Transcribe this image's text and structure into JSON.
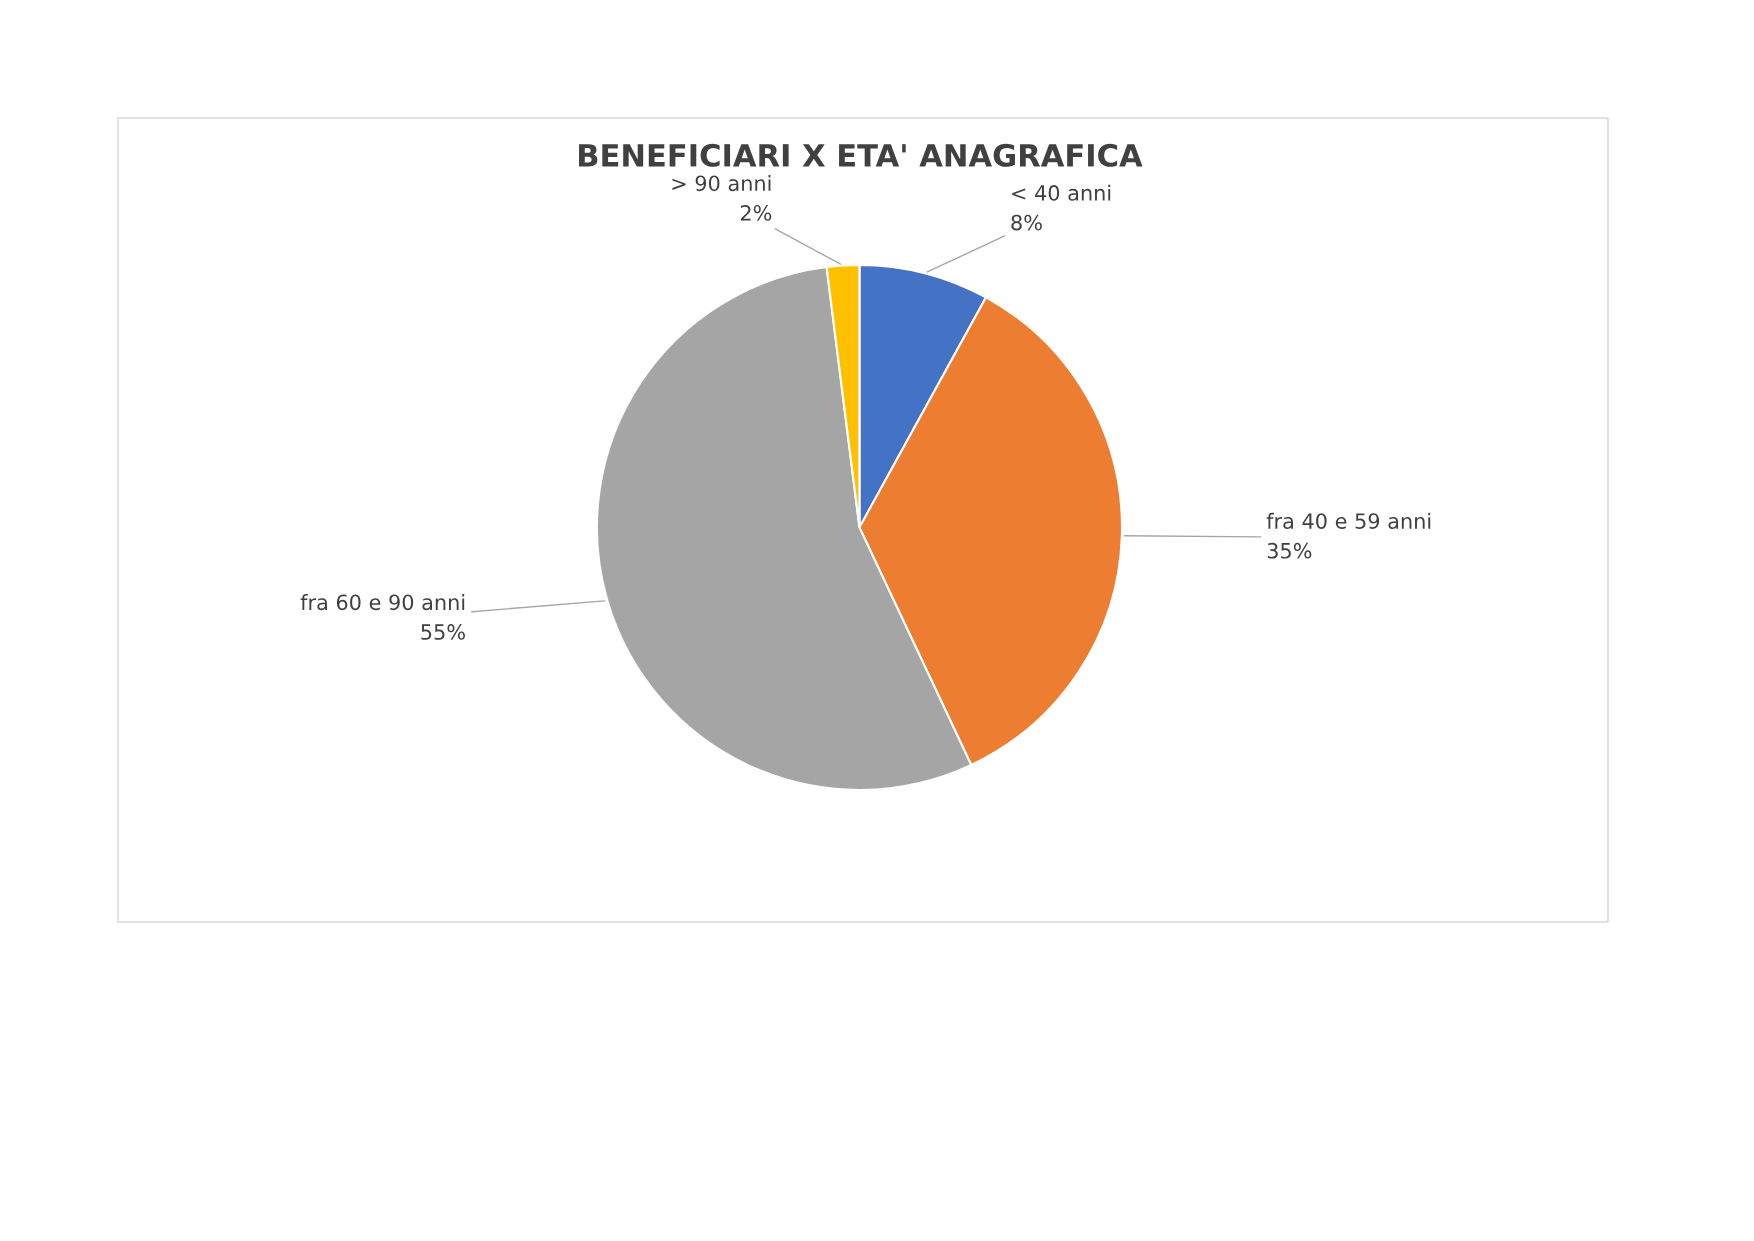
{
  "chart_data": {
    "type": "pie",
    "title": "BENEFICIARI X ETA' ANAGRAFICA",
    "categories": [
      "< 40 anni",
      "fra 40 e 59 anni",
      "fra 60 e 90 anni",
      "> 90 anni"
    ],
    "values": [
      8,
      35,
      55,
      2
    ],
    "value_labels": [
      "8%",
      "35%",
      "55%",
      "2%"
    ],
    "colors": [
      "#4472c4",
      "#ed7d31",
      "#a5a5a5",
      "#ffc000"
    ],
    "legend": false
  }
}
